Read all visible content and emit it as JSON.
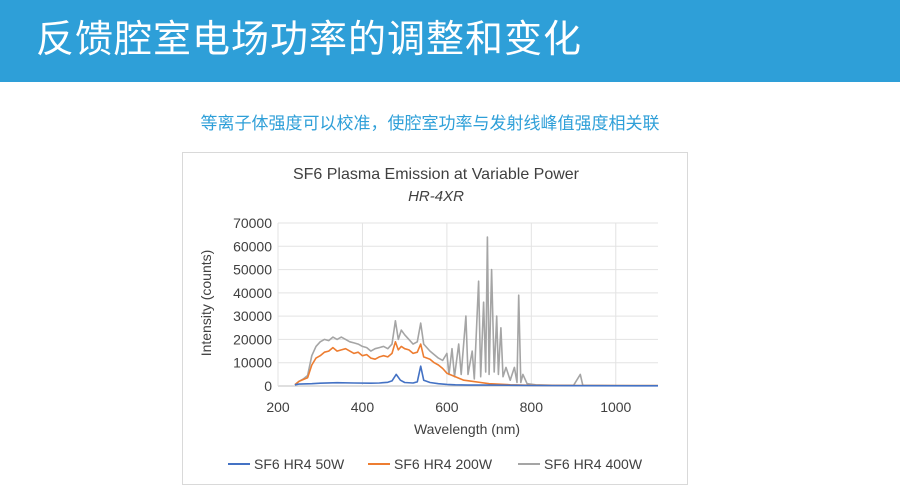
{
  "header": {
    "title": "反馈腔室电场功率的调整和变化"
  },
  "subtitle": "等离子体强度可以校准，使腔室功率与发射线峰值强度相关联",
  "colors": {
    "banner": "#2e9fd8",
    "s50": "#4472c4",
    "s200": "#ed7d31",
    "s400": "#a5a5a5"
  },
  "chart_data": {
    "type": "line",
    "title": "SF6 Plasma Emission at Variable Power",
    "subtitle": "HR-4XR",
    "xlabel": "Wavelength (nm)",
    "ylabel": "Intensity (counts)",
    "xlim": [
      200,
      1100
    ],
    "ylim": [
      0,
      70000
    ],
    "xticks": [
      "200",
      "400",
      "600",
      "800",
      "1000"
    ],
    "yticks": [
      "0",
      "10000",
      "20000",
      "30000",
      "40000",
      "50000",
      "60000",
      "70000"
    ],
    "grid": true,
    "legend_position": "bottom",
    "series": [
      {
        "name": "SF6 HR4 50W",
        "color": "#4472c4",
        "points": [
          [
            240,
            500
          ],
          [
            250,
            800
          ],
          [
            260,
            900
          ],
          [
            280,
            1000
          ],
          [
            300,
            1200
          ],
          [
            340,
            1400
          ],
          [
            380,
            1300
          ],
          [
            420,
            1200
          ],
          [
            440,
            1300
          ],
          [
            460,
            1600
          ],
          [
            470,
            2200
          ],
          [
            480,
            5000
          ],
          [
            490,
            2500
          ],
          [
            500,
            1500
          ],
          [
            520,
            1300
          ],
          [
            530,
            1800
          ],
          [
            538,
            8500
          ],
          [
            545,
            2500
          ],
          [
            560,
            1500
          ],
          [
            580,
            1000
          ],
          [
            600,
            700
          ],
          [
            620,
            500
          ],
          [
            650,
            400
          ],
          [
            700,
            400
          ],
          [
            760,
            300
          ],
          [
            800,
            200
          ],
          [
            900,
            150
          ],
          [
            1100,
            100
          ]
        ]
      },
      {
        "name": "SF6 HR4 200W",
        "color": "#ed7d31",
        "points": [
          [
            240,
            500
          ],
          [
            250,
            2000
          ],
          [
            260,
            2800
          ],
          [
            270,
            3500
          ],
          [
            280,
            9000
          ],
          [
            290,
            12000
          ],
          [
            300,
            13000
          ],
          [
            310,
            14500
          ],
          [
            320,
            15000
          ],
          [
            330,
            16500
          ],
          [
            340,
            15000
          ],
          [
            350,
            15500
          ],
          [
            360,
            16000
          ],
          [
            370,
            15000
          ],
          [
            380,
            14000
          ],
          [
            390,
            14500
          ],
          [
            400,
            13000
          ],
          [
            410,
            13500
          ],
          [
            420,
            12000
          ],
          [
            430,
            11500
          ],
          [
            440,
            12500
          ],
          [
            450,
            13000
          ],
          [
            460,
            12500
          ],
          [
            470,
            14000
          ],
          [
            478,
            19000
          ],
          [
            485,
            15500
          ],
          [
            492,
            17000
          ],
          [
            500,
            16000
          ],
          [
            510,
            15500
          ],
          [
            520,
            14000
          ],
          [
            530,
            14500
          ],
          [
            538,
            18000
          ],
          [
            545,
            12500
          ],
          [
            560,
            11500
          ],
          [
            570,
            10000
          ],
          [
            580,
            9000
          ],
          [
            590,
            7500
          ],
          [
            600,
            5500
          ],
          [
            620,
            4000
          ],
          [
            640,
            2500
          ],
          [
            660,
            2000
          ],
          [
            680,
            1500
          ],
          [
            700,
            1000
          ],
          [
            750,
            500
          ],
          [
            800,
            300
          ],
          [
            900,
            200
          ],
          [
            1100,
            150
          ]
        ]
      },
      {
        "name": "SF6 HR4 400W",
        "color": "#a5a5a5",
        "points": [
          [
            240,
            500
          ],
          [
            250,
            2000
          ],
          [
            260,
            3000
          ],
          [
            270,
            4500
          ],
          [
            280,
            13000
          ],
          [
            290,
            17000
          ],
          [
            300,
            19000
          ],
          [
            310,
            20000
          ],
          [
            320,
            19500
          ],
          [
            330,
            21000
          ],
          [
            340,
            20000
          ],
          [
            350,
            21000
          ],
          [
            360,
            20000
          ],
          [
            370,
            19000
          ],
          [
            380,
            18500
          ],
          [
            390,
            18000
          ],
          [
            400,
            17000
          ],
          [
            410,
            16500
          ],
          [
            420,
            15000
          ],
          [
            430,
            16000
          ],
          [
            440,
            16500
          ],
          [
            450,
            17000
          ],
          [
            460,
            16000
          ],
          [
            470,
            18000
          ],
          [
            478,
            28000
          ],
          [
            485,
            20000
          ],
          [
            492,
            24000
          ],
          [
            500,
            22000
          ],
          [
            510,
            20000
          ],
          [
            520,
            18000
          ],
          [
            530,
            19000
          ],
          [
            538,
            27000
          ],
          [
            545,
            18000
          ],
          [
            560,
            15000
          ],
          [
            570,
            13500
          ],
          [
            580,
            12000
          ],
          [
            590,
            11000
          ],
          [
            600,
            14000
          ],
          [
            605,
            5000
          ],
          [
            612,
            16000
          ],
          [
            618,
            4000
          ],
          [
            628,
            18000
          ],
          [
            634,
            5000
          ],
          [
            645,
            30000
          ],
          [
            650,
            5000
          ],
          [
            660,
            15000
          ],
          [
            665,
            3000
          ],
          [
            675,
            45000
          ],
          [
            680,
            4000
          ],
          [
            687,
            36000
          ],
          [
            692,
            6000
          ],
          [
            696,
            64000
          ],
          [
            700,
            5000
          ],
          [
            706,
            50000
          ],
          [
            712,
            6000
          ],
          [
            718,
            30000
          ],
          [
            722,
            5000
          ],
          [
            728,
            25000
          ],
          [
            733,
            4000
          ],
          [
            740,
            8000
          ],
          [
            750,
            2500
          ],
          [
            760,
            8000
          ],
          [
            766,
            1500
          ],
          [
            770,
            39000
          ],
          [
            775,
            1500
          ],
          [
            780,
            5000
          ],
          [
            790,
            1000
          ],
          [
            810,
            500
          ],
          [
            850,
            300
          ],
          [
            900,
            300
          ],
          [
            916,
            5000
          ],
          [
            922,
            300
          ],
          [
            1000,
            200
          ],
          [
            1100,
            200
          ]
        ]
      }
    ]
  }
}
